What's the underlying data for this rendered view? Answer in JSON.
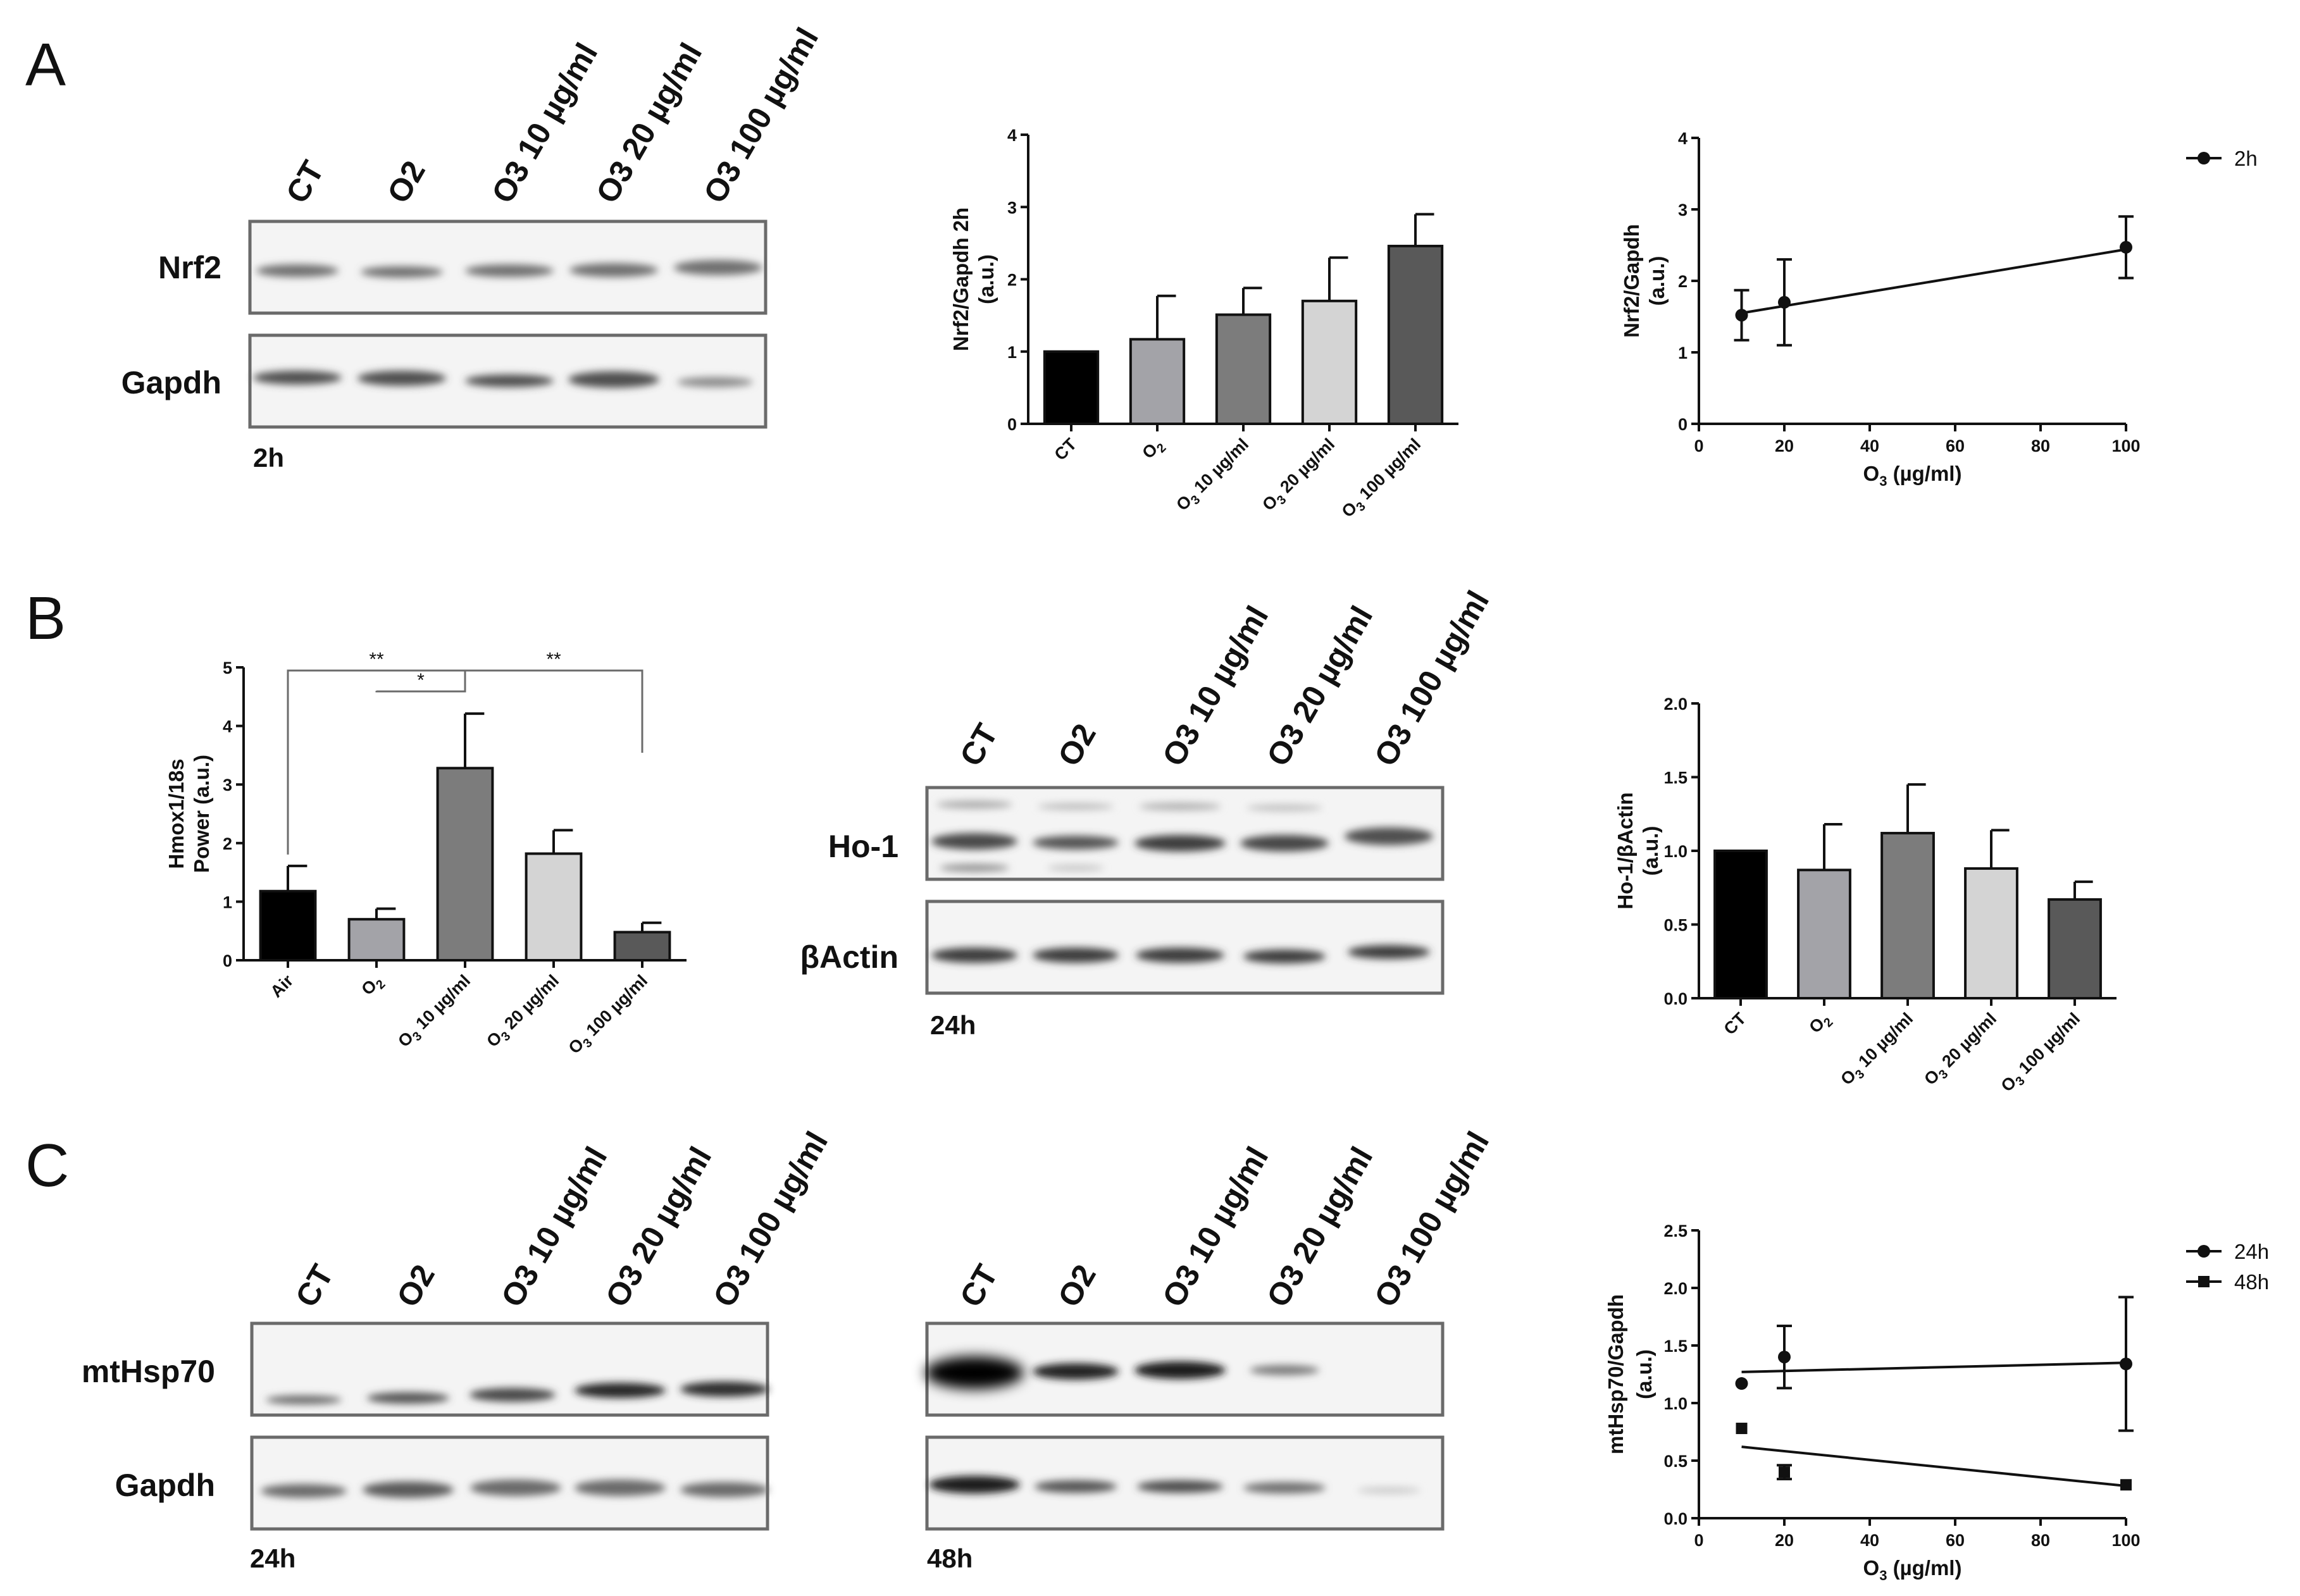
{
  "panels": [
    "A",
    "B",
    "C"
  ],
  "colors": {
    "ct": "#000000",
    "o2": "#a3a3a8",
    "o3_10": "#7c7c7c",
    "o3_20": "#d4d4d4",
    "o3_100": "#595959",
    "bracket": "#6b6b6b",
    "axis": "#111111"
  },
  "blots": {
    "a": {
      "lanes": [
        "CT",
        "O2",
        "O3 10 µg/ml",
        "O3 20 µg/ml",
        "O3 100 µg/ml"
      ],
      "rows": [
        "Nrf2",
        "Gapdh"
      ],
      "time": "2h"
    },
    "b": {
      "lanes": [
        "CT",
        "O2",
        "O3 10 µg/ml",
        "O3 20 µg/ml",
        "O3 100 µg/ml"
      ],
      "rows": [
        "Ho-1",
        "βActin"
      ],
      "time": "24h"
    },
    "c24": {
      "lanes": [
        "CT",
        "O2",
        "O3 10 µg/ml",
        "O3 20 µg/ml",
        "O3 100 µg/ml"
      ],
      "rows": [
        "mtHsp70",
        "Gapdh"
      ],
      "time": "24h"
    },
    "c48": {
      "lanes": [
        "CT",
        "O2",
        "O3 10 µg/ml",
        "O3 20 µg/ml",
        "O3 100 µg/ml"
      ],
      "time": "48h"
    }
  },
  "chart_data": [
    {
      "id": "a_bar",
      "type": "bar",
      "categories": [
        "CT",
        "O2",
        "O3 10 µg/ml",
        "O3 20 µg/ml",
        "O3 100 µg/ml"
      ],
      "values": [
        1.0,
        1.17,
        1.51,
        1.7,
        2.46
      ],
      "errors": [
        0,
        0.6,
        0.37,
        0.6,
        0.44
      ],
      "ylabel": "Nrf2/Gapdh 2h",
      "ylabel2": "(a.u.)",
      "ylim": [
        0,
        4
      ],
      "yticks": [
        0,
        1,
        2,
        3,
        4
      ]
    },
    {
      "id": "a_line",
      "type": "scatter",
      "ylabel": "Nrf2/Gapdh",
      "ylabel2": "(a.u.)",
      "xlabel": "O3 (µg/ml)",
      "xlim": [
        0,
        100
      ],
      "ylim": [
        0,
        4
      ],
      "xticks": [
        0,
        20,
        40,
        60,
        80,
        100
      ],
      "yticks": [
        0,
        1,
        2,
        3,
        4
      ],
      "series": [
        {
          "name": "2h",
          "x": [
            10,
            20,
            100
          ],
          "y": [
            1.52,
            1.7,
            2.47
          ],
          "err": [
            0.35,
            0.6,
            0.43
          ],
          "fit": [
            [
              10,
              1.55
            ],
            [
              100,
              2.44
            ]
          ]
        }
      ]
    },
    {
      "id": "b_bar_left",
      "type": "bar",
      "categories": [
        "Air",
        "O2",
        "O3 10 µg/ml",
        "O3 20 µg/ml",
        "O3 100 µg/ml"
      ],
      "values": [
        1.18,
        0.7,
        3.28,
        1.82,
        0.48
      ],
      "errors": [
        0.43,
        0.18,
        0.93,
        0.4,
        0.16
      ],
      "ylabel": "Hmox1/18s",
      "ylabel2": "Power (a.u.)",
      "ylim": [
        0,
        5
      ],
      "yticks": [
        0,
        1,
        2,
        3,
        4,
        5
      ],
      "significance": [
        {
          "from": 0,
          "to": 2,
          "label": "**"
        },
        {
          "from": 1,
          "to": 2,
          "label": "*"
        },
        {
          "from": 2,
          "to": 4,
          "label": "**"
        }
      ]
    },
    {
      "id": "b_bar_right",
      "type": "bar",
      "categories": [
        "CT",
        "O2",
        "O3 10 µg/ml",
        "O3 20 µg/ml",
        "O3 100 µg/ml"
      ],
      "values": [
        1.0,
        0.87,
        1.12,
        0.88,
        0.67
      ],
      "errors": [
        0,
        0.31,
        0.33,
        0.26,
        0.12
      ],
      "ylabel": "Ho-1/βActin",
      "ylabel2": "(a.u.)",
      "ylim": [
        0,
        2
      ],
      "yticks": [
        "0.0",
        "0.5",
        "1.0",
        "1.5",
        "2.0"
      ]
    },
    {
      "id": "c_line",
      "type": "scatter",
      "ylabel": "mtHsp70/Gapdh",
      "ylabel2": "(a.u.)",
      "xlabel": "O3 (µg/ml)",
      "xlim": [
        0,
        100
      ],
      "ylim": [
        0,
        2.5
      ],
      "xticks": [
        0,
        20,
        40,
        60,
        80,
        100
      ],
      "yticks": [
        "0.0",
        "0.5",
        "1.0",
        "1.5",
        "2.0",
        "2.5"
      ],
      "series": [
        {
          "name": "24h",
          "marker": "circle",
          "x": [
            10,
            20,
            100
          ],
          "y": [
            1.17,
            1.4,
            1.34
          ],
          "err": [
            0,
            0.27,
            0.58
          ],
          "fit": [
            [
              10,
              1.27
            ],
            [
              100,
              1.35
            ]
          ]
        },
        {
          "name": "48h",
          "marker": "square",
          "x": [
            10,
            20,
            100
          ],
          "y": [
            0.78,
            0.4,
            0.29
          ],
          "err": [
            0,
            0.06,
            0
          ],
          "fit": [
            [
              10,
              0.62
            ],
            [
              100,
              0.28
            ]
          ]
        }
      ]
    }
  ]
}
